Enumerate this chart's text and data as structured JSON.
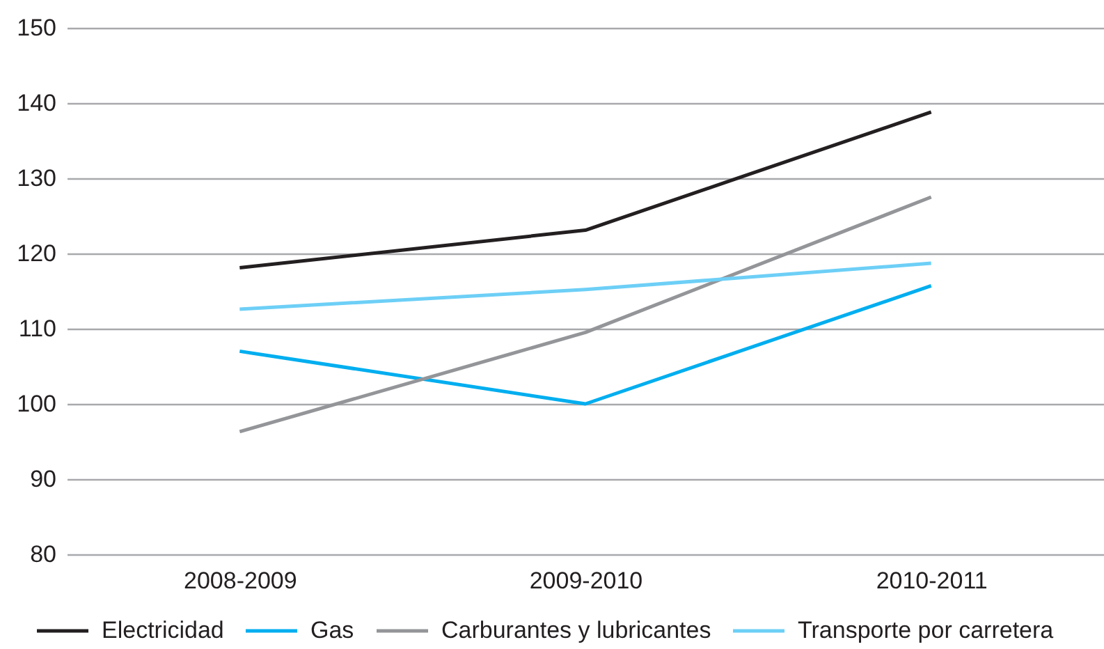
{
  "chart_data": {
    "type": "line",
    "categories": [
      "2008-2009",
      "2009-2010",
      "2010-2011"
    ],
    "series": [
      {
        "name": "Electricidad",
        "color": "#231f20",
        "values": [
          118.1,
          123.1,
          138.8
        ]
      },
      {
        "name": "Gas",
        "color": "#00aeef",
        "values": [
          107,
          100,
          115.7
        ]
      },
      {
        "name": "Carburantes y lubricantes",
        "color": "#939598",
        "values": [
          96.3,
          109.5,
          127.5
        ]
      },
      {
        "name": "Transporte por carretera",
        "color": "#6dcff6",
        "values": [
          112.6,
          115.2,
          118.7
        ]
      }
    ],
    "ylim": [
      80,
      150
    ],
    "yticks": [
      80,
      90,
      100,
      110,
      120,
      130,
      140,
      150
    ],
    "grid": "y",
    "legend": "bottom"
  }
}
